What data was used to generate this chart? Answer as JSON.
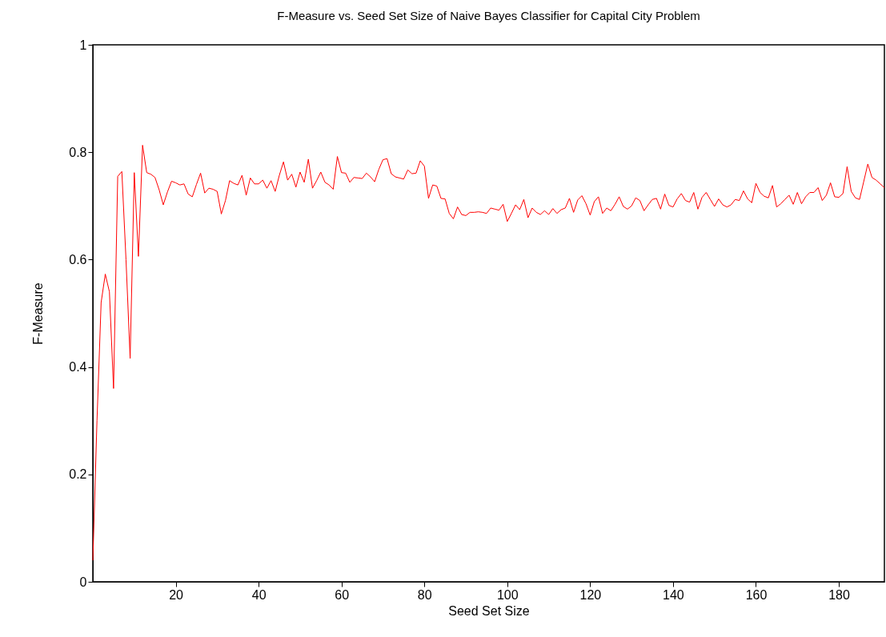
{
  "chart_data": {
    "type": "line",
    "title": "F-Measure vs. Seed Set Size of Naive Bayes Classifier for Capital City Problem",
    "xlabel": "Seed Set Size",
    "ylabel": "F-Measure",
    "x": [
      0,
      1,
      2,
      3,
      4,
      5,
      6,
      7,
      8,
      9,
      10,
      11,
      12,
      13,
      14,
      15,
      16,
      17,
      18,
      19,
      20,
      21,
      22,
      23,
      24,
      25,
      26,
      27,
      28,
      29,
      30,
      31,
      32,
      33,
      34,
      35,
      36,
      37,
      38,
      39,
      40,
      41,
      42,
      43,
      44,
      45,
      46,
      47,
      48,
      49,
      50,
      51,
      52,
      53,
      54,
      55,
      56,
      57,
      58,
      59,
      60,
      61,
      62,
      63,
      64,
      65,
      66,
      67,
      68,
      69,
      70,
      71,
      72,
      73,
      74,
      75,
      76,
      77,
      78,
      79,
      80,
      81,
      82,
      83,
      84,
      85,
      86,
      87,
      88,
      89,
      90,
      91,
      92,
      93,
      94,
      95,
      96,
      97,
      98,
      99,
      100,
      101,
      102,
      103,
      104,
      105,
      106,
      107,
      108,
      109,
      110,
      111,
      112,
      113,
      114,
      115,
      116,
      117,
      118,
      119,
      120,
      121,
      122,
      123,
      124,
      125,
      126,
      127,
      128,
      129,
      130,
      131,
      132,
      133,
      134,
      135,
      136,
      137,
      138,
      139,
      140,
      141,
      142,
      143,
      144,
      145,
      146,
      147,
      148,
      149,
      150,
      151,
      152,
      153,
      154,
      155,
      156,
      157,
      158,
      159,
      160,
      161,
      162,
      163,
      164,
      165,
      166,
      167,
      168,
      169,
      170,
      171,
      172,
      173,
      174,
      175,
      176,
      177,
      178,
      179,
      180,
      181,
      182,
      183,
      184,
      185,
      186,
      187,
      188,
      189,
      190,
      191
    ],
    "series": [
      {
        "color": "#ff0000",
        "values": [
          0.04,
          0.3,
          0.52,
          0.573,
          0.54,
          0.36,
          0.755,
          0.764,
          0.6,
          0.416,
          0.762,
          0.606,
          0.813,
          0.762,
          0.759,
          0.753,
          0.73,
          0.702,
          0.726,
          0.746,
          0.743,
          0.739,
          0.741,
          0.722,
          0.717,
          0.74,
          0.761,
          0.724,
          0.733,
          0.731,
          0.727,
          0.685,
          0.71,
          0.747,
          0.742,
          0.739,
          0.757,
          0.72,
          0.752,
          0.741,
          0.741,
          0.748,
          0.733,
          0.747,
          0.727,
          0.757,
          0.782,
          0.748,
          0.759,
          0.735,
          0.763,
          0.744,
          0.787,
          0.733,
          0.747,
          0.763,
          0.744,
          0.739,
          0.731,
          0.792,
          0.762,
          0.761,
          0.744,
          0.753,
          0.752,
          0.751,
          0.761,
          0.754,
          0.745,
          0.768,
          0.786,
          0.788,
          0.76,
          0.754,
          0.752,
          0.75,
          0.767,
          0.76,
          0.761,
          0.784,
          0.774,
          0.714,
          0.739,
          0.737,
          0.714,
          0.713,
          0.686,
          0.676,
          0.698,
          0.684,
          0.682,
          0.688,
          0.688,
          0.689,
          0.688,
          0.686,
          0.696,
          0.694,
          0.692,
          0.703,
          0.671,
          0.686,
          0.702,
          0.693,
          0.712,
          0.678,
          0.696,
          0.688,
          0.684,
          0.691,
          0.684,
          0.695,
          0.686,
          0.693,
          0.696,
          0.714,
          0.688,
          0.711,
          0.719,
          0.704,
          0.683,
          0.708,
          0.717,
          0.686,
          0.696,
          0.691,
          0.703,
          0.717,
          0.699,
          0.694,
          0.7,
          0.715,
          0.71,
          0.691,
          0.702,
          0.712,
          0.714,
          0.694,
          0.722,
          0.701,
          0.698,
          0.713,
          0.723,
          0.71,
          0.707,
          0.725,
          0.694,
          0.716,
          0.725,
          0.712,
          0.699,
          0.713,
          0.702,
          0.698,
          0.702,
          0.712,
          0.71,
          0.728,
          0.713,
          0.706,
          0.742,
          0.725,
          0.718,
          0.715,
          0.738,
          0.698,
          0.704,
          0.712,
          0.72,
          0.703,
          0.725,
          0.704,
          0.717,
          0.725,
          0.725,
          0.734,
          0.71,
          0.72,
          0.743,
          0.717,
          0.716,
          0.723,
          0.773,
          0.727,
          0.715,
          0.712,
          0.745,
          0.778,
          0.753,
          0.748,
          0.741,
          0.734
        ]
      }
    ],
    "xlim": [
      0,
      191
    ],
    "xticks": [
      20,
      40,
      60,
      80,
      100,
      120,
      140,
      160,
      180
    ],
    "ylim": [
      0,
      1
    ],
    "yticks": [
      0,
      0.2,
      0.4,
      0.6,
      0.8,
      1
    ],
    "grid": false,
    "marker": "none",
    "line_style": "solid"
  }
}
